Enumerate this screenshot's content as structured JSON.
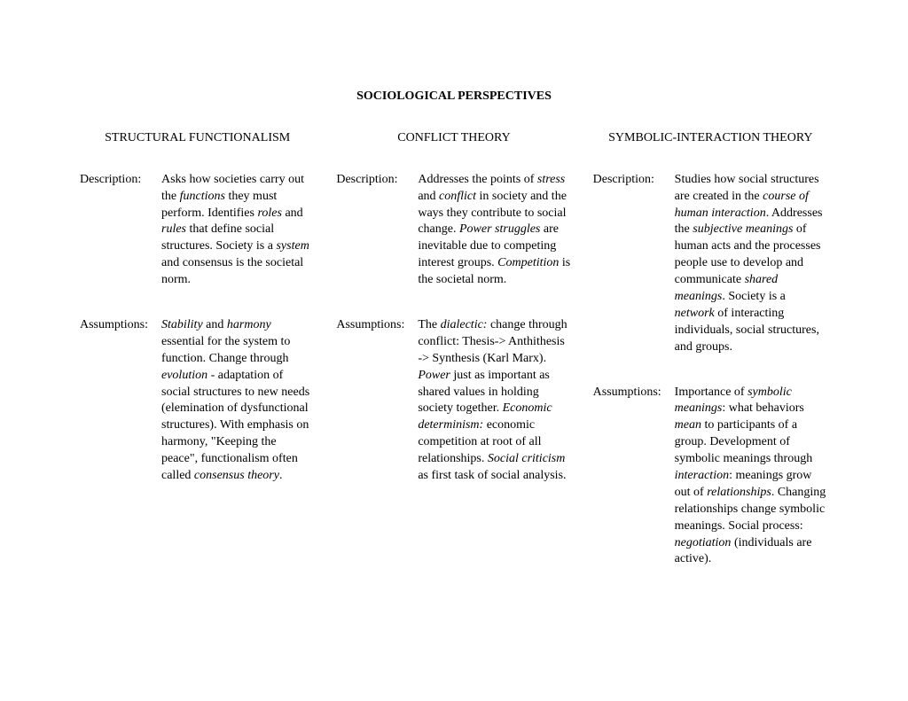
{
  "title": "SOCIOLOGICAL PERSPECTIVES",
  "labels": {
    "description": "Description:",
    "assumptions": "Assumptions:"
  },
  "columns": [
    {
      "heading": "STRUCTURAL FUNCTIONALISM",
      "description": [
        {
          "t": "Asks how societies carry out the "
        },
        {
          "t": "functions",
          "i": true
        },
        {
          "t": " they must perform.  Identifies "
        },
        {
          "t": "roles",
          "i": true
        },
        {
          "t": " and "
        },
        {
          "t": "rules",
          "i": true
        },
        {
          "t": " that define social structures.  Society is a "
        },
        {
          "t": "system",
          "i": true
        },
        {
          "t": " and consensus is the societal norm."
        }
      ],
      "assumptions": [
        {
          "t": "Stability",
          "i": true
        },
        {
          "t": " and "
        },
        {
          "t": "harmony",
          "i": true
        },
        {
          "t": " essential for the system to function.  Change through "
        },
        {
          "t": "evolution",
          "i": true
        },
        {
          "t": " - adaptation of social structures to new needs (elemination of dysfunctional structures).  With emphasis on harmony, \"Keeping the peace\", functionalism often called "
        },
        {
          "t": "consensus theory",
          "i": true
        },
        {
          "t": "."
        }
      ]
    },
    {
      "heading": "CONFLICT THEORY",
      "description": [
        {
          "t": "Addresses the points of "
        },
        {
          "t": "stress",
          "i": true
        },
        {
          "t": " and "
        },
        {
          "t": "conflict",
          "i": true
        },
        {
          "t": " in society and the ways they contribute to social change.  "
        },
        {
          "t": "Power struggles",
          "i": true
        },
        {
          "t": " are inevitable due to competing interest groups.  "
        },
        {
          "t": "Competition",
          "i": true
        },
        {
          "t": " is the societal norm."
        }
      ],
      "assumptions": [
        {
          "t": "The "
        },
        {
          "t": "dialectic:",
          "i": true
        },
        {
          "t": " change through conflict: Thesis-> Anthithesis -> Synthesis (Karl Marx).  "
        },
        {
          "t": "Power",
          "i": true
        },
        {
          "t": " just as important as shared values in holding society together.  "
        },
        {
          "t": "Economic determinism:",
          "i": true
        },
        {
          "t": " economic competition at root of all relationships.  "
        },
        {
          "t": "Social criticism",
          "i": true
        },
        {
          "t": " as first task of social analysis."
        }
      ]
    },
    {
      "heading": "SYMBOLIC-INTERACTION THEORY",
      "description": [
        {
          "t": "Studies how social structures are created in the "
        },
        {
          "t": "course of human interaction",
          "i": true
        },
        {
          "t": ".  Addresses the "
        },
        {
          "t": "subjective meanings",
          "i": true
        },
        {
          "t": " of human acts and the processes people use to develop and communicate "
        },
        {
          "t": "shared meanings",
          "i": true
        },
        {
          "t": ".  Society is a "
        },
        {
          "t": "network",
          "i": true
        },
        {
          "t": " of interacting individuals, social structures, and groups."
        }
      ],
      "assumptions": [
        {
          "t": "Importance of "
        },
        {
          "t": "symbolic meanings",
          "i": true
        },
        {
          "t": ": what behaviors "
        },
        {
          "t": "mean",
          "i": true
        },
        {
          "t": " to participants of a group.  Development of symbolic meanings through "
        },
        {
          "t": "interaction",
          "i": true
        },
        {
          "t": ": meanings grow out of "
        },
        {
          "t": "relationships",
          "i": true
        },
        {
          "t": ".  Changing relationships change symbolic meanings.  Social process: "
        },
        {
          "t": "negotiation",
          "i": true
        },
        {
          "t": " (individuals are active)."
        }
      ]
    }
  ]
}
